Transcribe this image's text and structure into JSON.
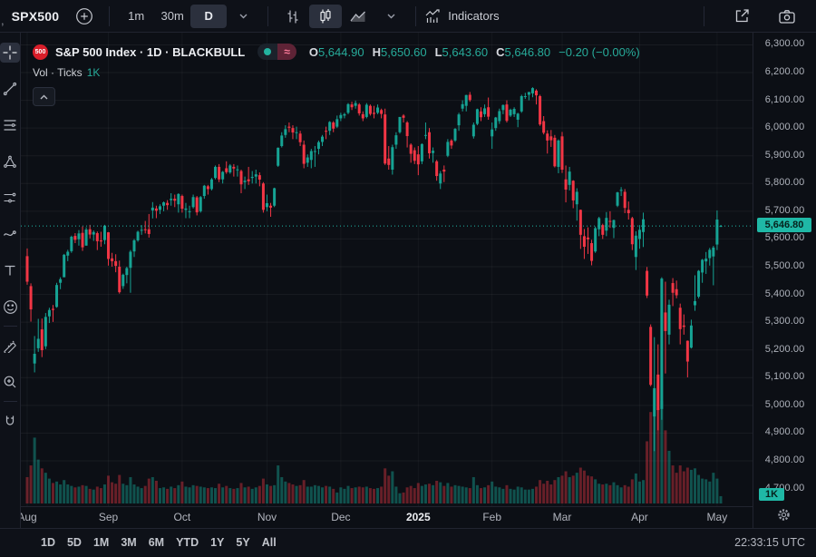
{
  "topbar": {
    "clipped_fragment": ",",
    "symbol": "SPX500",
    "tf_minute": "1m",
    "tf_half_hour": "30m",
    "tf_day": "D",
    "indicators_label": "Indicators"
  },
  "legend": {
    "logo_text": "500",
    "title": "S&P 500 Index · 1D · BLACKBULL",
    "approx_symbol": "≈",
    "o_label": "O",
    "o_value": "5,644.90",
    "h_label": "H",
    "h_value": "5,650.60",
    "l_label": "L",
    "l_value": "5,643.60",
    "c_label": "C",
    "c_value": "5,646.80",
    "change": "−0.20 (−0.00%)",
    "vol_label": "Vol · Ticks",
    "vol_value": "1K"
  },
  "axis": {
    "current_price_label": "5,646.80",
    "volume_badge": "1K",
    "partial_bottom_tick": "4,700.00"
  },
  "footer": {
    "ranges": [
      "1D",
      "5D",
      "1M",
      "3M",
      "6M",
      "YTD",
      "1Y",
      "5Y",
      "All"
    ],
    "clock": "22:33:15 UTC"
  },
  "sidebar_tools": [
    "crosshair",
    "trend-line",
    "fib-retracement",
    "pattern",
    "forecast",
    "brush",
    "text",
    "emoji",
    "ruler",
    "zoom-in",
    "magnet"
  ],
  "chart_data": {
    "type": "candlestick",
    "title": "S&P 500 Index",
    "interval": "1D",
    "feed": "BLACKBULL",
    "volume_unit": "Ticks",
    "current_price": 5646.8,
    "last_ohlc": {
      "open": 5644.9,
      "high": 5650.6,
      "low": 5643.6,
      "close": 5646.8,
      "change": -0.2,
      "change_pct": "-0.00%"
    },
    "price_axis": {
      "min": 4800,
      "max": 6300,
      "step": 100,
      "ylim": [
        4700,
        6343
      ]
    },
    "volume_ylim": [
      0,
      15500
    ],
    "colors": {
      "up": "#16a394",
      "down": "#f23645",
      "vol_up": "rgba(22,163,148,0.45)",
      "vol_down": "rgba(242,54,69,0.40)",
      "accent": "#1fb8a6"
    },
    "month_ticks": [
      {
        "label": "Aug",
        "index": 0
      },
      {
        "label": "Sep",
        "index": 22
      },
      {
        "label": "Oct",
        "index": 42
      },
      {
        "label": "Nov",
        "index": 65
      },
      {
        "label": "Dec",
        "index": 85
      },
      {
        "label": "2025",
        "index": 106,
        "major": true
      },
      {
        "label": "Feb",
        "index": 126
      },
      {
        "label": "Mar",
        "index": 145
      },
      {
        "label": "Apr",
        "index": 166
      },
      {
        "label": "May",
        "index": 187
      }
    ],
    "candles": [
      [
        5538,
        5566,
        5435,
        5446,
        3600
      ],
      [
        5430,
        5440,
        5302,
        5346,
        5200
      ],
      [
        5151,
        5250,
        5119,
        5186,
        9000
      ],
      [
        5206,
        5312,
        5193,
        5240,
        6000
      ],
      [
        5274,
        5313,
        5174,
        5199,
        4800
      ],
      [
        5213,
        5333,
        5203,
        5319,
        4200
      ],
      [
        5321,
        5352,
        5297,
        5344,
        3400
      ],
      [
        5348,
        5362,
        5301,
        5344,
        2800
      ],
      [
        5355,
        5442,
        5352,
        5434,
        3000
      ],
      [
        5442,
        5462,
        5419,
        5455,
        2600
      ],
      [
        5462,
        5546,
        5462,
        5543,
        3200
      ],
      [
        5540,
        5561,
        5520,
        5554,
        2600
      ],
      [
        5556,
        5612,
        5550,
        5608,
        2400
      ],
      [
        5611,
        5621,
        5585,
        5597,
        2200
      ],
      [
        5599,
        5632,
        5576,
        5620,
        2300
      ],
      [
        5622,
        5645,
        5557,
        5570,
        2500
      ],
      [
        5576,
        5642,
        5576,
        5634,
        2400
      ],
      [
        5635,
        5651,
        5602,
        5616,
        2000
      ],
      [
        5616,
        5631,
        5593,
        5625,
        1900
      ],
      [
        5621,
        5627,
        5560,
        5592,
        2300
      ],
      [
        5595,
        5626,
        5572,
        5591,
        2100
      ],
      [
        5596,
        5651,
        5581,
        5648,
        2600
      ],
      [
        5624,
        5625,
        5504,
        5528,
        3800
      ],
      [
        5530,
        5550,
        5500,
        5520,
        2900
      ],
      [
        5520,
        5545,
        5480,
        5503,
        2700
      ],
      [
        5500,
        5522,
        5403,
        5408,
        3900
      ],
      [
        5430,
        5475,
        5420,
        5471,
        2700
      ],
      [
        5470,
        5500,
        5440,
        5495,
        2500
      ],
      [
        5496,
        5560,
        5406,
        5554,
        3600
      ],
      [
        5555,
        5600,
        5535,
        5595,
        2600
      ],
      [
        5595,
        5630,
        5590,
        5626,
        2300
      ],
      [
        5630,
        5650,
        5615,
        5633,
        2100
      ],
      [
        5635,
        5665,
        5620,
        5634,
        2400
      ],
      [
        5635,
        5690,
        5605,
        5618,
        3400
      ],
      [
        5703,
        5733,
        5674,
        5713,
        3600
      ],
      [
        5710,
        5720,
        5675,
        5702,
        3100
      ],
      [
        5705,
        5725,
        5690,
        5718,
        2100
      ],
      [
        5720,
        5735,
        5700,
        5732,
        2200
      ],
      [
        5730,
        5740,
        5705,
        5722,
        2000
      ],
      [
        5740,
        5765,
        5720,
        5745,
        2300
      ],
      [
        5745,
        5760,
        5715,
        5738,
        2100
      ],
      [
        5725,
        5765,
        5695,
        5762,
        2500
      ],
      [
        5755,
        5760,
        5695,
        5709,
        3000
      ],
      [
        5705,
        5730,
        5675,
        5710,
        2300
      ],
      [
        5700,
        5720,
        5675,
        5700,
        2200
      ],
      [
        5715,
        5760,
        5710,
        5751,
        2500
      ],
      [
        5750,
        5755,
        5685,
        5696,
        2400
      ],
      [
        5700,
        5755,
        5695,
        5751,
        2300
      ],
      [
        5755,
        5795,
        5745,
        5792,
        2200
      ],
      [
        5790,
        5795,
        5760,
        5780,
        2100
      ],
      [
        5780,
        5820,
        5775,
        5815,
        2200
      ],
      [
        5820,
        5865,
        5815,
        5860,
        2100
      ],
      [
        5860,
        5870,
        5805,
        5815,
        2700
      ],
      [
        5815,
        5845,
        5800,
        5842,
        2200
      ],
      [
        5855,
        5880,
        5835,
        5841,
        2400
      ],
      [
        5840,
        5870,
        5835,
        5865,
        2100
      ],
      [
        5860,
        5870,
        5825,
        5854,
        2000
      ],
      [
        5850,
        5865,
        5825,
        5851,
        2100
      ],
      [
        5845,
        5850,
        5765,
        5797,
        2800
      ],
      [
        5805,
        5825,
        5780,
        5810,
        2200
      ],
      [
        5815,
        5860,
        5795,
        5808,
        2300
      ],
      [
        5820,
        5845,
        5800,
        5824,
        2000
      ],
      [
        5825,
        5850,
        5800,
        5833,
        2200
      ],
      [
        5830,
        5840,
        5790,
        5814,
        2400
      ],
      [
        5800,
        5805,
        5695,
        5705,
        3400
      ],
      [
        5715,
        5760,
        5700,
        5729,
        2600
      ],
      [
        5720,
        5730,
        5680,
        5713,
        2400
      ],
      [
        5720,
        5785,
        5715,
        5783,
        2500
      ],
      [
        5864,
        5930,
        5860,
        5929,
        5200
      ],
      [
        5935,
        5985,
        5930,
        5973,
        3600
      ],
      [
        5975,
        6010,
        5965,
        5996,
        3000
      ],
      [
        6005,
        6020,
        5985,
        6001,
        2800
      ],
      [
        6000,
        6010,
        5960,
        5984,
        2600
      ],
      [
        5985,
        6005,
        5960,
        5985,
        2400
      ],
      [
        5980,
        5990,
        5935,
        5949,
        2500
      ],
      [
        5940,
        5955,
        5855,
        5871,
        3200
      ],
      [
        5875,
        5905,
        5860,
        5894,
        2300
      ],
      [
        5885,
        5925,
        5855,
        5917,
        2300
      ],
      [
        5915,
        5935,
        5860,
        5917,
        2500
      ],
      [
        5925,
        5955,
        5905,
        5949,
        2400
      ],
      [
        5950,
        5975,
        5935,
        5969,
        2200
      ],
      [
        5990,
        6005,
        5960,
        5987,
        2400
      ],
      [
        5990,
        6025,
        5975,
        6022,
        2300
      ],
      [
        6020,
        6025,
        5985,
        5998,
        2000
      ],
      [
        6005,
        6045,
        6000,
        6032,
        1500
      ],
      [
        6035,
        6055,
        6025,
        6047,
        2200
      ],
      [
        6045,
        6055,
        6035,
        6050,
        2000
      ],
      [
        6055,
        6090,
        6050,
        6086,
        2400
      ],
      [
        6085,
        6095,
        6065,
        6075,
        2100
      ],
      [
        6080,
        6099,
        6070,
        6090,
        2200
      ],
      [
        6085,
        6090,
        6045,
        6053,
        2300
      ],
      [
        6050,
        6060,
        6025,
        6035,
        2200
      ],
      [
        6040,
        6090,
        6035,
        6084,
        2300
      ],
      [
        6080,
        6085,
        6045,
        6051,
        2100
      ],
      [
        6055,
        6080,
        6035,
        6051,
        2000
      ],
      [
        6055,
        6085,
        6050,
        6074,
        2100
      ],
      [
        6065,
        6070,
        6035,
        6051,
        2300
      ],
      [
        6049,
        6070,
        5867,
        5872,
        4800
      ],
      [
        5890,
        5935,
        5850,
        5867,
        3800
      ],
      [
        5850,
        5940,
        5832,
        5931,
        4400
      ],
      [
        5940,
        5985,
        5925,
        5974,
        2300
      ],
      [
        5985,
        6040,
        5980,
        6040,
        1400
      ],
      [
        6045,
        6050,
        6020,
        6037,
        1500
      ],
      [
        6020,
        6025,
        5930,
        5971,
        2200
      ],
      [
        5940,
        5945,
        5875,
        5907,
        2400
      ],
      [
        5920,
        5930,
        5870,
        5882,
        2100
      ],
      [
        5905,
        5935,
        5830,
        5869,
        2800
      ],
      [
        5880,
        5945,
        5870,
        5942,
        2400
      ],
      [
        5975,
        6020,
        5960,
        5975,
        2600
      ],
      [
        5985,
        6000,
        5890,
        5909,
        2700
      ],
      [
        5910,
        5930,
        5875,
        5918,
        2500
      ],
      [
        5880,
        5885,
        5810,
        5827,
        3100
      ],
      [
        5800,
        5845,
        5780,
        5836,
        2900
      ],
      [
        5850,
        5865,
        5805,
        5843,
        2400
      ],
      [
        5900,
        5960,
        5895,
        5950,
        2800
      ],
      [
        5955,
        5960,
        5925,
        5937,
        2300
      ],
      [
        5955,
        6000,
        5950,
        5997,
        2500
      ],
      [
        6010,
        6055,
        5990,
        6049,
        2400
      ],
      [
        6070,
        6100,
        6060,
        6086,
        2300
      ],
      [
        6080,
        6120,
        6060,
        6119,
        2200
      ],
      [
        6120,
        6130,
        6095,
        6101,
        2100
      ],
      [
        5970,
        6020,
        5962,
        6012,
        3600
      ],
      [
        6015,
        6070,
        6010,
        6068,
        2500
      ],
      [
        6060,
        6075,
        6025,
        6039,
        2100
      ],
      [
        6050,
        6085,
        6040,
        6071,
        2200
      ],
      [
        6075,
        6110,
        6030,
        6041,
        2500
      ],
      [
        5970,
        6020,
        5925,
        5995,
        3000
      ],
      [
        6000,
        6040,
        5990,
        6038,
        2300
      ],
      [
        6025,
        6070,
        6015,
        6061,
        2200
      ],
      [
        6065,
        6085,
        6050,
        6083,
        2000
      ],
      [
        6085,
        6100,
        6020,
        6026,
        2500
      ],
      [
        6045,
        6070,
        6040,
        6066,
        2000
      ],
      [
        6050,
        6075,
        6040,
        6069,
        1900
      ],
      [
        6030,
        6055,
        6003,
        6052,
        2300
      ],
      [
        6060,
        6120,
        6055,
        6115,
        2200
      ],
      [
        6115,
        6127,
        6105,
        6115,
        1900
      ],
      [
        6120,
        6130,
        6100,
        6130,
        1900
      ],
      [
        6125,
        6147,
        6111,
        6144,
        2000
      ],
      [
        6135,
        6140,
        6085,
        6118,
        2300
      ],
      [
        6115,
        6120,
        6008,
        6013,
        3200
      ],
      [
        6025,
        6043,
        5977,
        5983,
        2700
      ],
      [
        5980,
        5992,
        5908,
        5955,
        3100
      ],
      [
        5970,
        5993,
        5932,
        5956,
        2600
      ],
      [
        5965,
        5975,
        5858,
        5862,
        3200
      ],
      [
        5860,
        5959,
        5837,
        5955,
        3600
      ],
      [
        5970,
        5986,
        5838,
        5850,
        3800
      ],
      [
        5815,
        5865,
        5732,
        5778,
        4400
      ],
      [
        5795,
        5860,
        5775,
        5843,
        3600
      ],
      [
        5810,
        5812,
        5711,
        5739,
        3800
      ],
      [
        5725,
        5783,
        5666,
        5770,
        4200
      ],
      [
        5705,
        5706,
        5564,
        5615,
        4900
      ],
      [
        5610,
        5636,
        5528,
        5572,
        4500
      ],
      [
        5605,
        5642,
        5546,
        5599,
        3800
      ],
      [
        5585,
        5597,
        5505,
        5521,
        3700
      ],
      [
        5555,
        5645,
        5550,
        5639,
        3300
      ],
      [
        5635,
        5680,
        5610,
        5675,
        2700
      ],
      [
        5650,
        5655,
        5600,
        5615,
        2600
      ],
      [
        5630,
        5697,
        5610,
        5676,
        2700
      ],
      [
        5665,
        5700,
        5640,
        5663,
        2500
      ],
      [
        5640,
        5670,
        5603,
        5668,
        2900
      ],
      [
        5720,
        5770,
        5715,
        5768,
        2500
      ],
      [
        5775,
        5787,
        5755,
        5777,
        2200
      ],
      [
        5770,
        5780,
        5693,
        5712,
        2500
      ],
      [
        5705,
        5735,
        5670,
        5693,
        2300
      ],
      [
        5675,
        5680,
        5560,
        5581,
        3300
      ],
      [
        5535,
        5628,
        5488,
        5612,
        4100
      ],
      [
        5600,
        5650,
        5565,
        5633,
        3000
      ],
      [
        5625,
        5695,
        5571,
        5671,
        3200
      ],
      [
        5485,
        5499,
        5387,
        5396,
        8500
      ],
      [
        5283,
        5292,
        5069,
        5074,
        12500
      ],
      [
        4960,
        5246,
        4835,
        5062,
        15500
      ],
      [
        5111,
        5220,
        4910,
        4983,
        13000
      ],
      [
        4987,
        5462,
        4948,
        5457,
        14000
      ],
      [
        5335,
        5446,
        5115,
        5268,
        10000
      ],
      [
        5255,
        5381,
        5220,
        5363,
        7200
      ],
      [
        5441,
        5459,
        5358,
        5406,
        5200
      ],
      [
        5419,
        5450,
        5386,
        5397,
        4200
      ],
      [
        5352,
        5367,
        5220,
        5275,
        5200
      ],
      [
        5288,
        5328,
        5255,
        5283,
        4400
      ],
      [
        5233,
        5234,
        5101,
        5158,
        4900
      ],
      [
        5208,
        5309,
        5205,
        5288,
        4600
      ],
      [
        5361,
        5469,
        5341,
        5376,
        4800
      ],
      [
        5392,
        5488,
        5386,
        5485,
        3900
      ],
      [
        5479,
        5528,
        5442,
        5525,
        3400
      ],
      [
        5519,
        5553,
        5474,
        5529,
        3300
      ],
      [
        5531,
        5568,
        5504,
        5561,
        3000
      ],
      [
        5537,
        5575,
        5433,
        5569,
        4200
      ],
      [
        5580,
        5703,
        5560,
        5670,
        3400
      ],
      [
        5644.9,
        5650.6,
        5643.6,
        5646.8,
        1000
      ]
    ]
  }
}
